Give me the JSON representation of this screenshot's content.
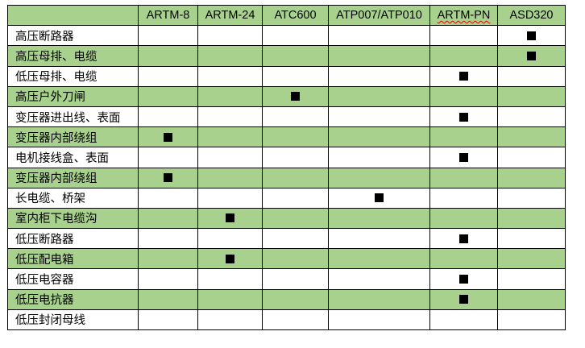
{
  "colors": {
    "green_row": "#A9D18E",
    "white_row": "#FFFFFF",
    "mark": "#000000"
  },
  "columns": [
    "",
    "ARTM-8",
    "ARTM-24",
    "ATC600",
    "ATP007/ATP010",
    "ARTM-PN",
    "ASD320"
  ],
  "mark_icon": "black-square",
  "rows": [
    {
      "label": "高压断路器",
      "marks": [
        false,
        false,
        false,
        false,
        false,
        true
      ]
    },
    {
      "label": "高压母排、电缆",
      "marks": [
        false,
        false,
        false,
        false,
        false,
        true
      ]
    },
    {
      "label": "低压母排、电缆",
      "marks": [
        false,
        false,
        false,
        false,
        true,
        false
      ]
    },
    {
      "label": "高压户外刀闸",
      "marks": [
        false,
        false,
        true,
        false,
        false,
        false
      ]
    },
    {
      "label": "变压器进出线、表面",
      "marks": [
        false,
        false,
        false,
        false,
        true,
        false
      ]
    },
    {
      "label": "变压器内部绕组",
      "marks": [
        true,
        false,
        false,
        false,
        false,
        false
      ]
    },
    {
      "label": "电机接线盒、表面",
      "marks": [
        false,
        false,
        false,
        false,
        true,
        false
      ]
    },
    {
      "label": "变压器内部绕组",
      "marks": [
        true,
        false,
        false,
        false,
        false,
        false
      ]
    },
    {
      "label": "长电缆、桥架",
      "marks": [
        false,
        false,
        false,
        true,
        false,
        false
      ]
    },
    {
      "label": "室内柜下电缆沟",
      "marks": [
        false,
        true,
        false,
        false,
        false,
        false
      ]
    },
    {
      "label": "低压断路器",
      "marks": [
        false,
        false,
        false,
        false,
        true,
        false
      ]
    },
    {
      "label": "低压配电箱",
      "marks": [
        false,
        true,
        false,
        false,
        false,
        false
      ]
    },
    {
      "label": "低压电容器",
      "marks": [
        false,
        false,
        false,
        false,
        true,
        false
      ]
    },
    {
      "label": "低压电抗器",
      "marks": [
        false,
        false,
        false,
        false,
        true,
        false
      ]
    },
    {
      "label": "低压封闭母线",
      "marks": [
        false,
        false,
        false,
        false,
        false,
        false
      ]
    }
  ]
}
